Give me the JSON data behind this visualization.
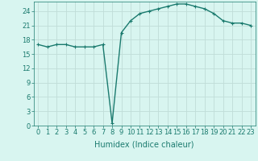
{
  "x": [
    0,
    1,
    2,
    3,
    4,
    5,
    6,
    7,
    8,
    9,
    10,
    11,
    12,
    13,
    14,
    15,
    16,
    17,
    18,
    19,
    20,
    21,
    22,
    23
  ],
  "y": [
    17.0,
    16.5,
    17.0,
    17.0,
    16.5,
    16.5,
    16.5,
    17.0,
    0.5,
    19.5,
    22.0,
    23.5,
    24.0,
    24.5,
    25.0,
    25.5,
    25.5,
    25.0,
    24.5,
    23.5,
    22.0,
    21.5,
    21.5,
    21.0
  ],
  "line_color": "#1a7a6e",
  "marker": "+",
  "marker_size": 3,
  "bg_color": "#d8f5f0",
  "grid_color": "#c0ddd8",
  "xlabel": "Humidex (Indice chaleur)",
  "ylabel": "",
  "title": "",
  "xlim": [
    -0.5,
    23.5
  ],
  "ylim": [
    0,
    26
  ],
  "yticks": [
    0,
    3,
    6,
    9,
    12,
    15,
    18,
    21,
    24
  ],
  "xlabel_fontsize": 7,
  "tick_fontsize": 6,
  "line_width": 1.0
}
